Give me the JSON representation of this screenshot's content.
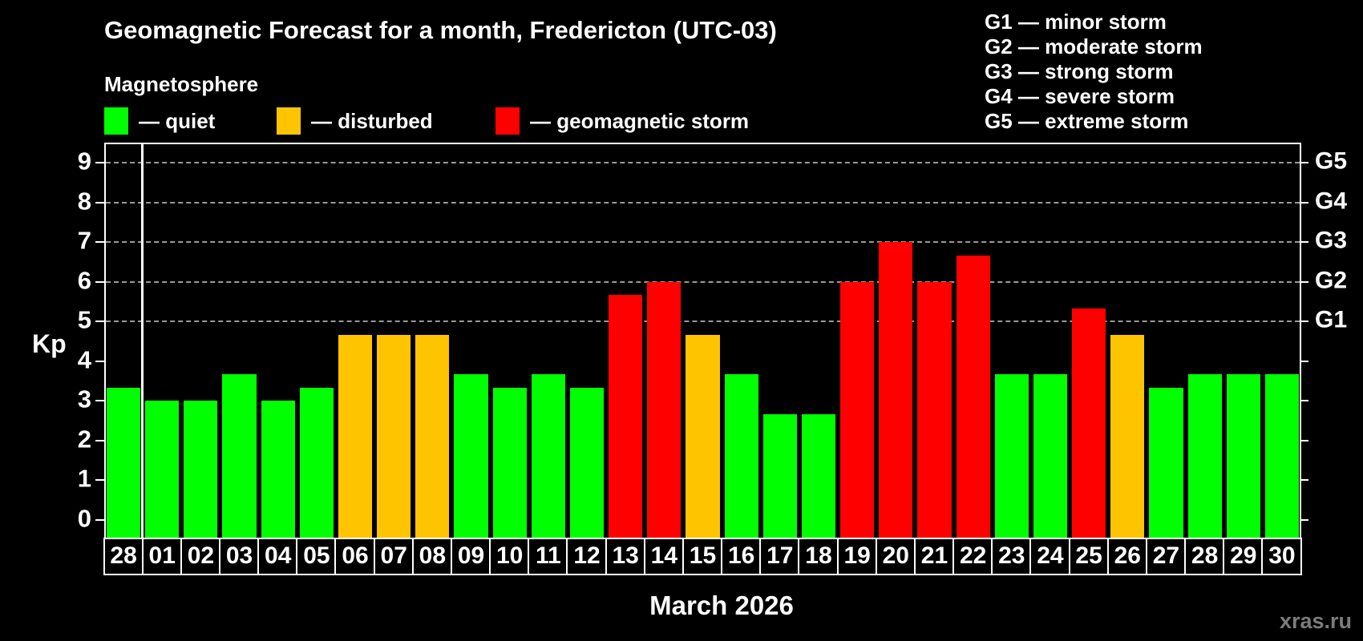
{
  "page": {
    "background": "#000000"
  },
  "chart_data": {
    "type": "bar",
    "title": "Geomagnetic Forecast for a month, Fredericton (UTC-03)",
    "subtitle": "Magnetosphere",
    "xlabel": "March 2026",
    "ylabel": "Kp",
    "ylim": [
      0,
      9
    ],
    "yticks": [
      0,
      1,
      2,
      3,
      4,
      5,
      6,
      7,
      8,
      9
    ],
    "grid": {
      "horizontal_dashed_at": [
        5,
        6,
        7,
        8,
        9
      ],
      "color": "#9a9a9a"
    },
    "right_axis_labels": [
      {
        "kp": 5,
        "label": "G1"
      },
      {
        "kp": 6,
        "label": "G2"
      },
      {
        "kp": 7,
        "label": "G3"
      },
      {
        "kp": 8,
        "label": "G4"
      },
      {
        "kp": 9,
        "label": "G5"
      }
    ],
    "categories": [
      "28",
      "01",
      "02",
      "03",
      "04",
      "05",
      "06",
      "07",
      "08",
      "09",
      "10",
      "11",
      "12",
      "13",
      "14",
      "15",
      "16",
      "17",
      "18",
      "19",
      "20",
      "21",
      "22",
      "23",
      "24",
      "25",
      "26",
      "27",
      "28",
      "29",
      "30"
    ],
    "values": [
      3.33,
      3,
      3,
      3.67,
      3,
      3.33,
      4.67,
      4.67,
      4.67,
      3.67,
      3.33,
      3.67,
      3.33,
      5.67,
      6,
      4.67,
      3.67,
      2.67,
      2.67,
      6,
      7,
      6,
      6.67,
      3.67,
      3.67,
      5.33,
      4.67,
      3.33,
      3.67,
      3.67,
      3.67
    ],
    "status": [
      "quiet",
      "quiet",
      "quiet",
      "quiet",
      "quiet",
      "quiet",
      "disturbed",
      "disturbed",
      "disturbed",
      "quiet",
      "quiet",
      "quiet",
      "quiet",
      "storm",
      "storm",
      "disturbed",
      "quiet",
      "quiet",
      "quiet",
      "storm",
      "storm",
      "storm",
      "storm",
      "quiet",
      "quiet",
      "storm",
      "disturbed",
      "quiet",
      "quiet",
      "quiet",
      "quiet"
    ],
    "status_colors": {
      "quiet": "#00ff00",
      "disturbed": "#ffc400",
      "storm": "#ff0000"
    },
    "prev_month_separator_after_index": 0,
    "legend_position": "top-left",
    "axis_color": "#ffffff"
  },
  "legend": {
    "items": [
      {
        "label": "— quiet",
        "status": "quiet"
      },
      {
        "label": "— disturbed",
        "status": "disturbed"
      },
      {
        "label": "— geomagnetic storm",
        "status": "storm"
      }
    ]
  },
  "g_scale_legend": {
    "lines": [
      "G1 — minor storm",
      "G2 — moderate storm",
      "G3 — strong storm",
      "G4 — severe storm",
      "G5 — extreme storm"
    ]
  },
  "watermark": "xras.ru"
}
